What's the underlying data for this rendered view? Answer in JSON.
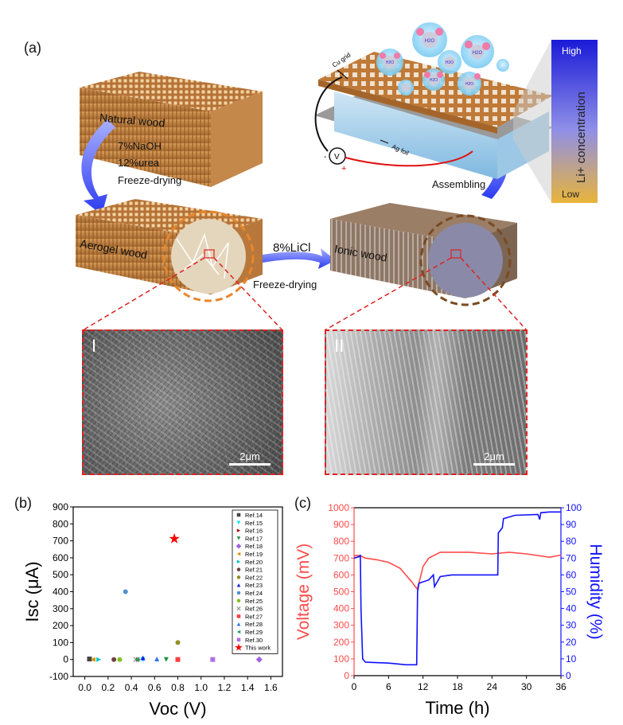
{
  "panel_a": {
    "label": "(a)",
    "natural_wood": "Natural wood",
    "step1": [
      "7%NaOH",
      "12%urea",
      "Freeze-drying"
    ],
    "aerogel_wood": "Aerogel wood",
    "step2_reagent": "8%LiCl",
    "step2_process": "Freeze-drying",
    "ionic_wood": "Ionic wood",
    "assembling": "Assembling",
    "device": {
      "cu_grid": "Cu grid",
      "ag_foil": "Ag foil",
      "minus": "-",
      "plus": "+",
      "meter": "V",
      "molecule": "H2O"
    },
    "colorbar": {
      "high": "High",
      "low": "Low",
      "title": "Li+ concentration",
      "top_color": "#1a1ad8",
      "bottom_color": "#e8b43a"
    },
    "sem": [
      {
        "tag": "I",
        "scale": "2μm"
      },
      {
        "tag": "II",
        "scale": "2μm"
      }
    ]
  },
  "chart_data": [
    {
      "panel": "(b)",
      "type": "scatter",
      "xlabel": "Voc (V)",
      "ylabel": "Isc (μA)",
      "xlim": [
        -0.1,
        1.7
      ],
      "ylim": [
        -100,
        900
      ],
      "xticks": [
        "0.0",
        "0.2",
        "0.4",
        "0.6",
        "0.8",
        "1.0",
        "1.2",
        "1.4",
        "1.6"
      ],
      "yticks": [
        "-100",
        "0",
        "100",
        "200",
        "300",
        "400",
        "500",
        "600",
        "700",
        "800",
        "900"
      ],
      "legend_position": "top-right",
      "series": [
        {
          "name": "Ref.14",
          "color": "#444444",
          "marker": "square",
          "x": 0.04,
          "y": 3
        },
        {
          "name": "Ref.15",
          "color": "#00e0ff",
          "marker": "triangle-down",
          "x": 0.5,
          "y": 0
        },
        {
          "name": "Ref.16",
          "color": "#b01010",
          "marker": "triangle-right",
          "x": 0.46,
          "y": 0
        },
        {
          "name": "Ref.17",
          "color": "#209040",
          "marker": "triangle-down",
          "x": 0.7,
          "y": 0
        },
        {
          "name": "Ref.18",
          "color": "#a060e0",
          "marker": "diamond",
          "x": 1.5,
          "y": 0
        },
        {
          "name": "Ref.19",
          "color": "#d09000",
          "marker": "triangle-left",
          "x": 0.07,
          "y": 0
        },
        {
          "name": "Ref.20",
          "color": "#00c0c0",
          "marker": "triangle-right",
          "x": 0.12,
          "y": 0
        },
        {
          "name": "Ref.21",
          "color": "#704040",
          "marker": "circle",
          "x": 0.25,
          "y": 0
        },
        {
          "name": "Ref.22",
          "color": "#909020",
          "marker": "circle",
          "x": 0.8,
          "y": 100
        },
        {
          "name": "Ref.23",
          "color": "#1020e0",
          "marker": "triangle-up",
          "x": 0.5,
          "y": 10
        },
        {
          "name": "Ref.24",
          "color": "#5090d0",
          "marker": "circle",
          "x": 0.35,
          "y": 400
        },
        {
          "name": "Ref.25",
          "color": "#80c020",
          "marker": "circle",
          "x": 0.3,
          "y": 0
        },
        {
          "name": "Ref.26",
          "color": "#999999",
          "marker": "cross",
          "x": 0.44,
          "y": 0
        },
        {
          "name": "Ref.27",
          "color": "#ff4040",
          "marker": "square",
          "x": 0.8,
          "y": 0
        },
        {
          "name": "Ref.28",
          "color": "#3070f0",
          "marker": "triangle-up",
          "x": 0.62,
          "y": 3
        },
        {
          "name": "Ref.29",
          "color": "#20a060",
          "marker": "triangle-left",
          "x": 0.45,
          "y": 0
        },
        {
          "name": "Ref.30",
          "color": "#b070e0",
          "marker": "square",
          "x": 1.1,
          "y": 0
        },
        {
          "name": "This work",
          "color": "#ff0000",
          "marker": "star",
          "x": 0.77,
          "y": 712
        }
      ]
    },
    {
      "panel": "(c)",
      "type": "line",
      "xlabel": "Time (h)",
      "xlim": [
        0,
        36
      ],
      "xticks": [
        "0",
        "6",
        "12",
        "18",
        "24",
        "30",
        "36"
      ],
      "ylabel_left": "Voltage (mV)",
      "ylim_left": [
        0,
        1000
      ],
      "yticks_left": [
        "0",
        "100",
        "200",
        "300",
        "400",
        "500",
        "600",
        "700",
        "800",
        "900",
        "1000"
      ],
      "ylabel_right": "Humidity (%)",
      "ylim_right": [
        0,
        100
      ],
      "yticks_right": [
        "0",
        "10",
        "20",
        "30",
        "40",
        "50",
        "60",
        "70",
        "80",
        "90",
        "100"
      ],
      "series": [
        {
          "axis": "left",
          "color": "#ff4a4a",
          "x": [
            0,
            1,
            2,
            4,
            6,
            8,
            10,
            11,
            11.5,
            12,
            13,
            15,
            20,
            24,
            27,
            30,
            34,
            36
          ],
          "y": [
            715,
            715,
            700,
            690,
            675,
            640,
            560,
            515,
            580,
            650,
            700,
            735,
            735,
            725,
            735,
            725,
            705,
            718
          ]
        },
        {
          "axis": "right",
          "color": "#1010ff",
          "x": [
            0,
            1,
            1.1,
            1.2,
            1.5,
            2,
            6,
            9,
            10.9,
            11.05,
            11.3,
            13,
            13.8,
            14,
            15,
            17,
            25,
            25.1,
            25.8,
            26,
            28,
            32,
            32.3,
            32.5,
            34,
            36
          ],
          "y": [
            70,
            71,
            72,
            40,
            10,
            8,
            7.5,
            6.5,
            6.5,
            50,
            55,
            57,
            60,
            53,
            59,
            60,
            60,
            85,
            88,
            93.5,
            95.5,
            96,
            93,
            97,
            97.5,
            97.5
          ]
        }
      ]
    }
  ]
}
